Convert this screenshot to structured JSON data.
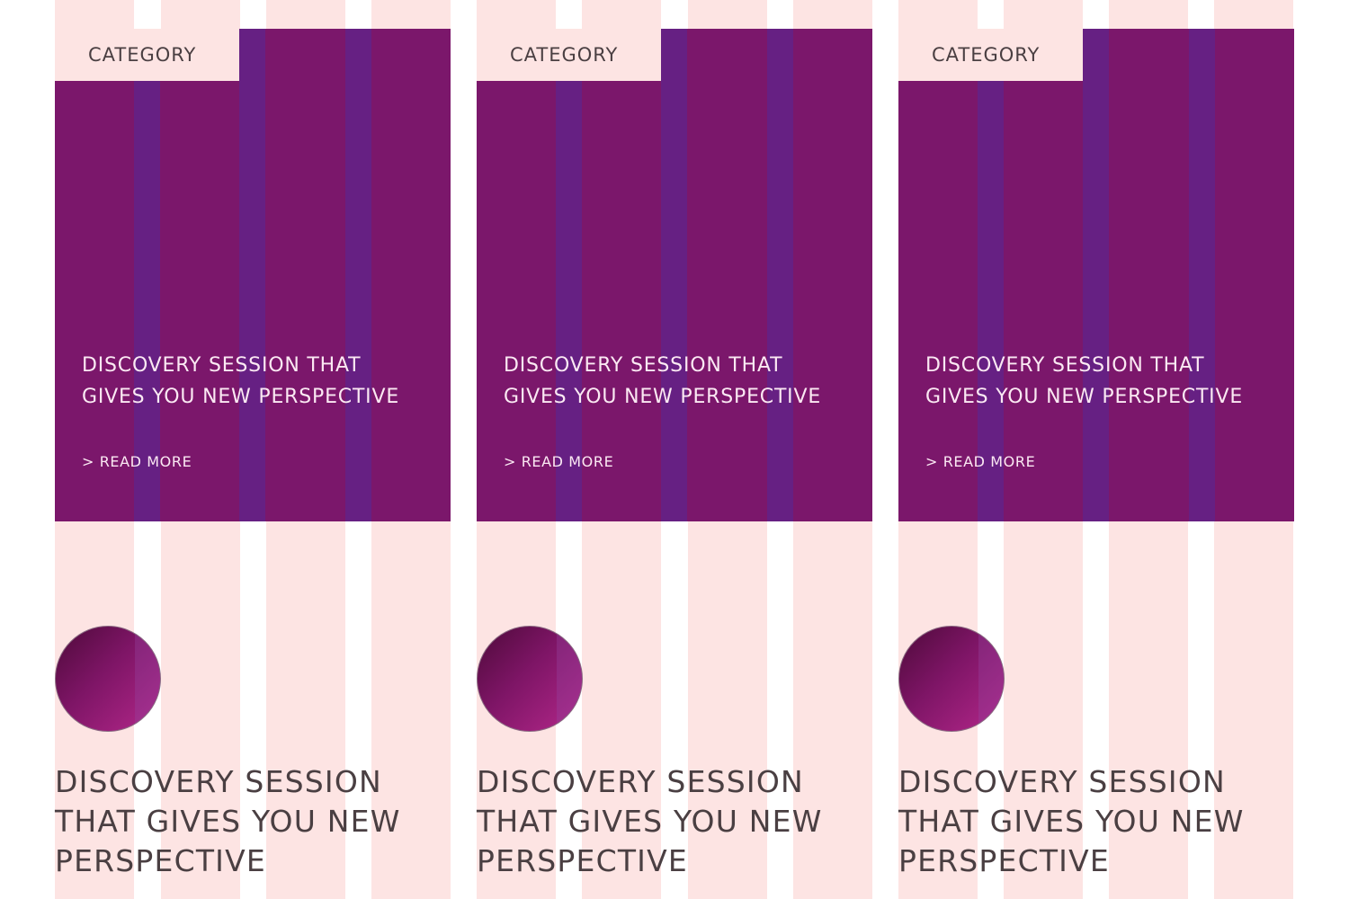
{
  "colors": {
    "grid_column": "#fde4e3",
    "hero_background": "#7b176b",
    "hero_grid_stripe": "#662083",
    "hero_text": "#fbe9f3",
    "body_text": "#4a3f42"
  },
  "cards": [
    {
      "category": "CATEGORY",
      "hero_title_line1": "DISCOVERY SESSION THAT",
      "hero_title_line2": "GIVES YOU NEW PERSPECTIVE",
      "read_more": "> READ MORE",
      "title_line1": "DISCOVERY SESSION",
      "title_line2": "THAT GIVES YOU NEW",
      "title_line3": "PERSPECTIVE"
    },
    {
      "category": "CATEGORY",
      "hero_title_line1": "DISCOVERY SESSION THAT",
      "hero_title_line2": "GIVES YOU NEW PERSPECTIVE",
      "read_more": "> READ MORE",
      "title_line1": "DISCOVERY SESSION",
      "title_line2": "THAT GIVES YOU NEW",
      "title_line3": "PERSPECTIVE"
    },
    {
      "category": "CATEGORY",
      "hero_title_line1": "DISCOVERY SESSION THAT",
      "hero_title_line2": "GIVES YOU NEW PERSPECTIVE",
      "read_more": "> READ MORE",
      "title_line1": "DISCOVERY SESSION",
      "title_line2": "THAT GIVES YOU NEW",
      "title_line3": "PERSPECTIVE"
    }
  ]
}
